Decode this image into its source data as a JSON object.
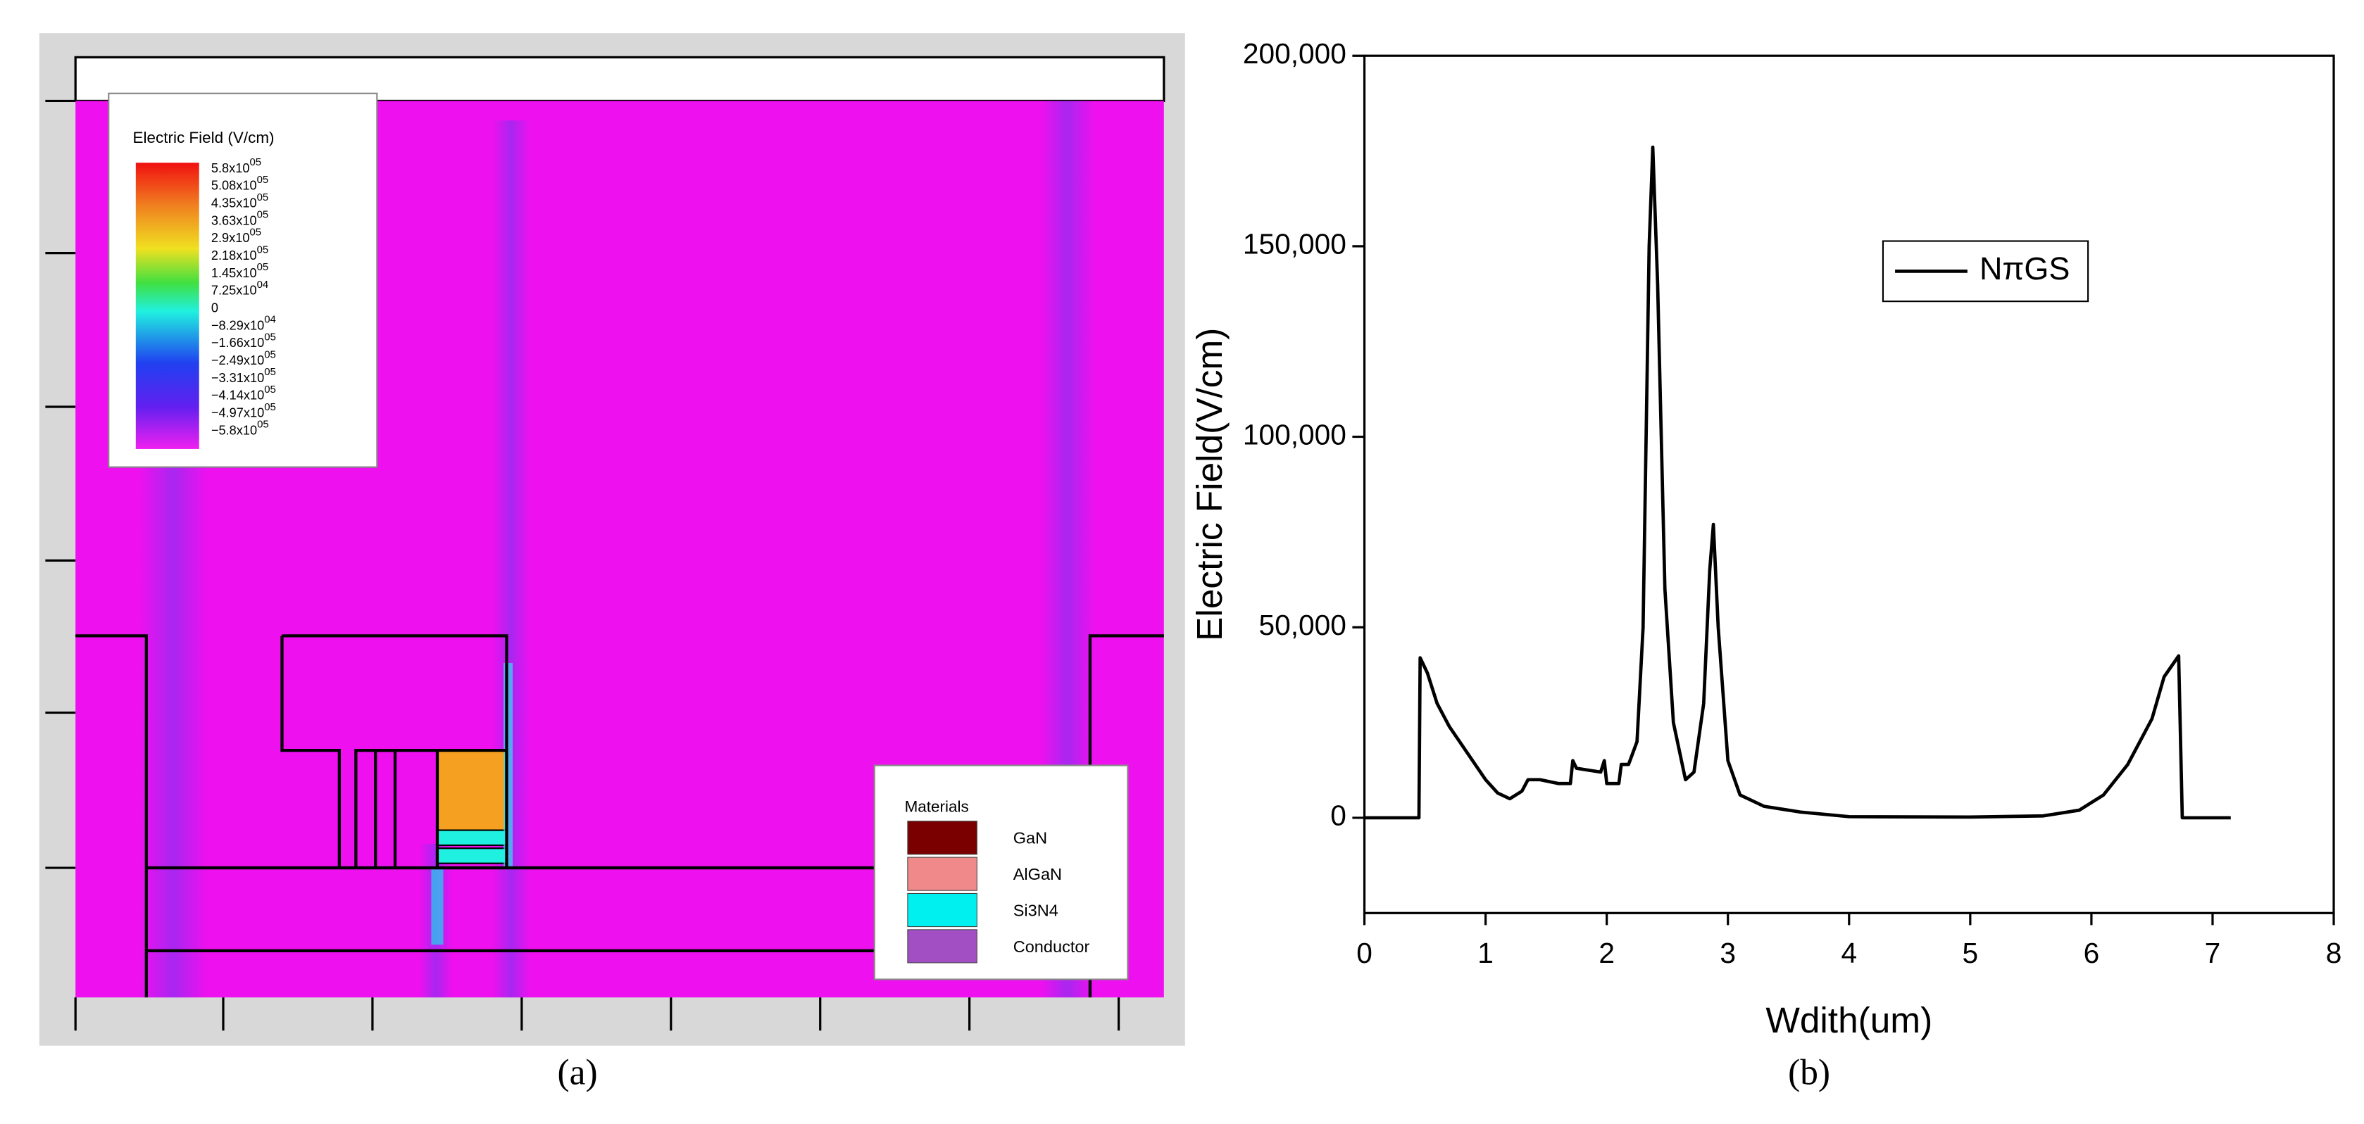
{
  "panel_a": {
    "colorbar_title": "Electric Field (V/cm)",
    "colorbar_labels": [
      {
        "mantissa": "5.8x10",
        "exponent": "05"
      },
      {
        "mantissa": "5.08x10",
        "exponent": "05"
      },
      {
        "mantissa": "4.35x10",
        "exponent": "05"
      },
      {
        "mantissa": "3.63x10",
        "exponent": "05"
      },
      {
        "mantissa": "2.9x10",
        "exponent": "05"
      },
      {
        "mantissa": "2.18x10",
        "exponent": "05"
      },
      {
        "mantissa": "1.45x10",
        "exponent": "05"
      },
      {
        "mantissa": "7.25x10",
        "exponent": "04"
      },
      {
        "mantissa": "0"
      },
      {
        "mantissa": "−8.29x10",
        "exponent": "04"
      },
      {
        "mantissa": "−1.66x10",
        "exponent": "05"
      },
      {
        "mantissa": "−2.49x10",
        "exponent": "05"
      },
      {
        "mantissa": "−3.31x10",
        "exponent": "05"
      },
      {
        "mantissa": "−4.14x10",
        "exponent": "05"
      },
      {
        "mantissa": "−4.97x10",
        "exponent": "05"
      },
      {
        "mantissa": "−5.8x10",
        "exponent": "05"
      }
    ],
    "materials_title": "Materials",
    "materials": [
      {
        "name": "GaN",
        "color": "#7a0000"
      },
      {
        "name": "AlGaN",
        "color": "#f08a8a"
      },
      {
        "name": "Si3N4",
        "color": "#00f0f0"
      },
      {
        "name": "Conductor",
        "color": "#a24fc4"
      }
    ],
    "caption": "(a)"
  },
  "chart_data": [
    {
      "type": "line",
      "xlabel": "Wdith(um)",
      "ylabel": "Electric Field(V/cm)",
      "caption": "(b)",
      "xlim": [
        0,
        8
      ],
      "ylim": [
        -25000,
        200000
      ],
      "xticks": [
        0,
        1,
        2,
        3,
        4,
        5,
        6,
        7,
        8
      ],
      "yticks": [
        {
          "value": 0,
          "label": "0"
        },
        {
          "value": 50000,
          "label": "50,000"
        },
        {
          "value": 100000,
          "label": "100,000"
        },
        {
          "value": 150000,
          "label": "150,000"
        },
        {
          "value": 200000,
          "label": "200,000"
        }
      ],
      "legend": "upper right",
      "series": [
        {
          "name": "NπGS",
          "color": "#000000",
          "x": [
            0,
            0.45,
            0.46,
            0.52,
            0.6,
            0.7,
            0.85,
            1.0,
            1.1,
            1.2,
            1.3,
            1.35,
            1.45,
            1.6,
            1.7,
            1.72,
            1.75,
            1.85,
            1.95,
            1.98,
            2.0,
            2.1,
            2.12,
            2.18,
            2.25,
            2.3,
            2.35,
            2.38,
            2.42,
            2.48,
            2.55,
            2.65,
            2.72,
            2.8,
            2.85,
            2.88,
            2.92,
            3.0,
            3.1,
            3.3,
            3.6,
            4.0,
            5.0,
            5.6,
            5.9,
            6.1,
            6.3,
            6.5,
            6.6,
            6.72,
            6.75,
            7.15
          ],
          "values": [
            0,
            0,
            42000,
            38000,
            30000,
            24000,
            17000,
            10000,
            6500,
            5000,
            7000,
            10000,
            10000,
            9000,
            9000,
            15000,
            13000,
            12500,
            12000,
            15000,
            9000,
            9000,
            14000,
            14000,
            20000,
            50000,
            150000,
            176000,
            140000,
            60000,
            25000,
            10000,
            12000,
            30000,
            65000,
            77000,
            50000,
            15000,
            6000,
            3000,
            1500,
            300,
            200,
            500,
            2000,
            6000,
            14000,
            26000,
            37000,
            42500,
            0,
            0
          ]
        }
      ]
    }
  ]
}
